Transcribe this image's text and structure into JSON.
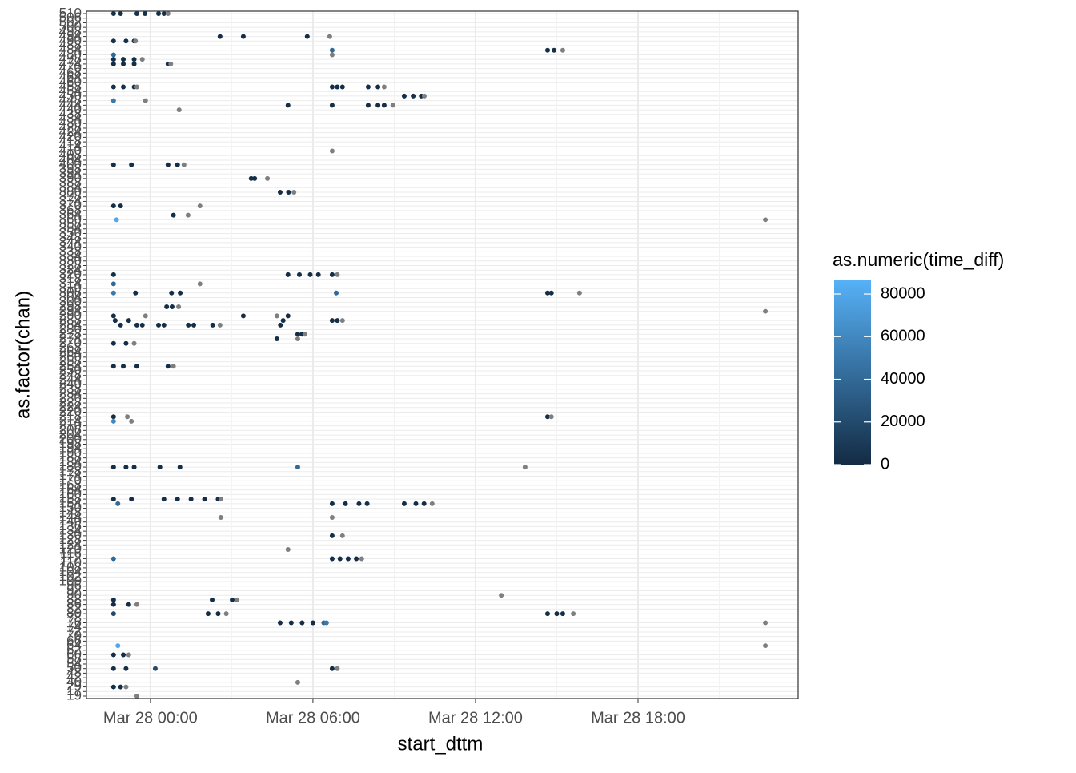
{
  "chart_data": {
    "type": "scatter",
    "x_label": "start_dttm",
    "y_label": "as.factor(chan)",
    "legend_title": "as.numeric(time_diff)",
    "xlim": [
      -2.36,
      23.91
    ],
    "xticks": [
      {
        "value": 0,
        "label": "Mar 28 00:00"
      },
      {
        "value": 6,
        "label": "Mar 28 06:00"
      },
      {
        "value": 12,
        "label": "Mar 28 12:00"
      },
      {
        "value": 18,
        "label": "Mar 28 18:00"
      }
    ],
    "categories": [
      "19",
      "17",
      "29",
      "40",
      "42",
      "48",
      "50",
      "54",
      "58",
      "60",
      "62",
      "64",
      "66",
      "70",
      "72",
      "74",
      "76",
      "78",
      "80",
      "82",
      "86",
      "88",
      "90",
      "92",
      "96",
      "100",
      "102",
      "104",
      "108",
      "110",
      "112",
      "116",
      "120",
      "124",
      "128",
      "130",
      "134",
      "136",
      "140",
      "144",
      "148",
      "150",
      "154",
      "158",
      "160",
      "164",
      "168",
      "170",
      "174",
      "178",
      "180",
      "184",
      "188",
      "190",
      "194",
      "198",
      "200",
      "204",
      "206",
      "210",
      "214",
      "218",
      "220",
      "224",
      "228",
      "230",
      "234",
      "238",
      "240",
      "244",
      "248",
      "250",
      "254",
      "258",
      "260",
      "264",
      "268",
      "270",
      "274",
      "278",
      "280",
      "284",
      "288",
      "290",
      "294",
      "298",
      "300",
      "304",
      "306",
      "310",
      "314",
      "318",
      "320",
      "324",
      "328",
      "330",
      "334",
      "338",
      "340",
      "344",
      "348",
      "350",
      "354",
      "358",
      "360",
      "364",
      "368",
      "370",
      "374",
      "378",
      "380",
      "384",
      "388",
      "390",
      "394",
      "398",
      "400",
      "404",
      "408",
      "410",
      "414",
      "418",
      "420",
      "424",
      "428",
      "430",
      "434",
      "438",
      "440",
      "444",
      "448",
      "450",
      "454",
      "458",
      "460",
      "464",
      "468",
      "470",
      "474",
      "478",
      "480",
      "484",
      "488",
      "490",
      "494",
      "498",
      "500",
      "502",
      "506",
      "510"
    ],
    "x": [
      -1.36,
      -1.1,
      -0.5,
      -0.2,
      0.3,
      0.5,
      0.65,
      2.57,
      3.43,
      5.79,
      6.62,
      -1.36,
      -0.9,
      -0.6,
      -0.55,
      6.71,
      14.66,
      14.9,
      15.22,
      -1.36,
      6.71,
      -1.36,
      -1.0,
      -0.6,
      -0.3,
      -1.36,
      -1.0,
      -0.6,
      0.65,
      0.75,
      -1.36,
      -1.0,
      -0.6,
      -0.5,
      6.71,
      6.9,
      7.09,
      8.04,
      8.4,
      8.63,
      9.37,
      9.7,
      10.0,
      10.11,
      -1.36,
      -0.18,
      5.08,
      6.71,
      8.04,
      8.4,
      8.63,
      8.95,
      1.06,
      6.71,
      -1.36,
      -0.7,
      0.65,
      1.0,
      1.24,
      3.72,
      3.85,
      4.32,
      4.79,
      5.1,
      5.3,
      -1.36,
      -1.1,
      1.83,
      0.85,
      1.39,
      -1.25,
      22.7,
      -1.36,
      5.08,
      5.5,
      5.9,
      6.2,
      6.71,
      6.9,
      -1.36,
      1.83,
      -1.36,
      -0.55,
      0.78,
      1.1,
      6.86,
      14.66,
      14.8,
      15.84,
      0.6,
      0.8,
      1.04,
      22.7,
      -1.36,
      -0.18,
      3.43,
      4.67,
      5.08,
      -1.3,
      -0.8,
      4.9,
      6.71,
      6.9,
      7.09,
      -1.1,
      -0.5,
      -0.3,
      0.3,
      0.5,
      1.4,
      1.6,
      2.3,
      2.57,
      4.8,
      5.44,
      5.6,
      5.7,
      4.67,
      5.44,
      -1.36,
      -0.9,
      -0.6,
      -1.36,
      -1.0,
      -0.5,
      0.65,
      0.85,
      -1.36,
      -0.85,
      14.66,
      14.8,
      -1.36,
      -0.7,
      -1.36,
      -0.9,
      -0.6,
      0.35,
      1.09,
      5.44,
      13.83,
      -1.36,
      -0.7,
      0.5,
      1.0,
      1.5,
      2.0,
      2.5,
      2.6,
      -1.2,
      6.71,
      7.2,
      7.7,
      8.0,
      9.37,
      9.8,
      10.1,
      10.4,
      2.6,
      6.71,
      6.71,
      7.09,
      5.08,
      -1.36,
      6.71,
      7.0,
      7.3,
      7.6,
      7.8,
      12.95,
      -1.36,
      2.28,
      3.02,
      3.2,
      -1.36,
      -0.8,
      -0.5,
      -1.36,
      2.13,
      2.5,
      2.8,
      14.66,
      15.0,
      15.22,
      15.61,
      4.79,
      5.2,
      5.6,
      6.0,
      6.4,
      6.5,
      22.7,
      -1.2,
      22.7,
      -1.36,
      -1.0,
      -0.8,
      -1.36,
      -0.9,
      0.18,
      6.71,
      6.9,
      5.44,
      -1.36,
      -1.1,
      -0.9,
      -0.5
    ],
    "y": [
      "510",
      "510",
      "510",
      "510",
      "510",
      "510",
      "510",
      "494",
      "494",
      "494",
      "494",
      "490",
      "490",
      "490",
      "490",
      "484",
      "484",
      "484",
      "484",
      "480",
      "480",
      "478",
      "478",
      "478",
      "478",
      "474",
      "474",
      "474",
      "474",
      "474",
      "458",
      "458",
      "458",
      "458",
      "458",
      "458",
      "458",
      "458",
      "458",
      "458",
      "450",
      "450",
      "450",
      "450",
      "448",
      "448",
      "444",
      "444",
      "444",
      "444",
      "444",
      "444",
      "440",
      "410",
      "400",
      "400",
      "400",
      "400",
      "400",
      "390",
      "390",
      "390",
      "380",
      "380",
      "380",
      "370",
      "370",
      "370",
      "364",
      "364",
      "360",
      "360",
      "320",
      "320",
      "320",
      "320",
      "320",
      "320",
      "320",
      "314",
      "314",
      "306",
      "306",
      "306",
      "306",
      "306",
      "306",
      "306",
      "306",
      "298",
      "298",
      "298",
      "294",
      "290",
      "290",
      "290",
      "290",
      "290",
      "288",
      "288",
      "288",
      "288",
      "288",
      "288",
      "284",
      "284",
      "284",
      "284",
      "284",
      "284",
      "284",
      "284",
      "284",
      "284",
      "278",
      "278",
      "278",
      "274",
      "274",
      "270",
      "270",
      "270",
      "254",
      "254",
      "254",
      "254",
      "254",
      "218",
      "218",
      "218",
      "218",
      "214",
      "214",
      "180",
      "180",
      "180",
      "180",
      "180",
      "180",
      "180",
      "158",
      "158",
      "158",
      "158",
      "158",
      "158",
      "158",
      "158",
      "154",
      "154",
      "154",
      "154",
      "154",
      "154",
      "154",
      "154",
      "154",
      "144",
      "144",
      "130",
      "130",
      "120",
      "112",
      "112",
      "112",
      "112",
      "112",
      "112",
      "90",
      "88",
      "88",
      "88",
      "88",
      "86",
      "86",
      "86",
      "80",
      "80",
      "80",
      "80",
      "80",
      "80",
      "80",
      "80",
      "76",
      "76",
      "76",
      "76",
      "76",
      "76",
      "76",
      "64",
      "64",
      "60",
      "60",
      "60",
      "50",
      "50",
      "50",
      "50",
      "50",
      "40",
      "29",
      "29",
      "29",
      "19"
    ],
    "color_values": [
      3000,
      3000,
      3000,
      3000,
      3000,
      3000,
      null,
      2000,
      2000,
      2000,
      null,
      3000,
      3000,
      3000,
      null,
      40000,
      2000,
      2000,
      null,
      40000,
      null,
      2000,
      2000,
      2000,
      null,
      2000,
      2000,
      2000,
      2000,
      null,
      3000,
      3000,
      3000,
      null,
      2000,
      2000,
      2000,
      2000,
      2000,
      null,
      2000,
      2000,
      2000,
      null,
      50000,
      null,
      2000,
      2000,
      2000,
      2000,
      2000,
      null,
      null,
      null,
      2000,
      2000,
      2000,
      2000,
      null,
      2000,
      2000,
      null,
      2000,
      2000,
      null,
      2000,
      2000,
      null,
      2000,
      null,
      80000,
      null,
      2000,
      2000,
      2000,
      2000,
      2000,
      2000,
      null,
      40000,
      null,
      50000,
      2000,
      2000,
      2000,
      40000,
      2000,
      2000,
      null,
      2000,
      2000,
      null,
      null,
      2000,
      null,
      2000,
      null,
      2000,
      2000,
      2000,
      2000,
      2000,
      2000,
      null,
      2000,
      2000,
      2000,
      2000,
      2000,
      2000,
      2000,
      2000,
      null,
      2000,
      2000,
      2000,
      null,
      2000,
      null,
      2000,
      2000,
      null,
      2000,
      2000,
      2000,
      2000,
      null,
      2000,
      null,
      2000,
      null,
      60000,
      null,
      2000,
      2000,
      2000,
      2000,
      2000,
      40000,
      null,
      2000,
      2000,
      2000,
      2000,
      2000,
      2000,
      2000,
      null,
      40000,
      2000,
      2000,
      2000,
      2000,
      2000,
      2000,
      2000,
      null,
      null,
      null,
      2000,
      null,
      null,
      40000,
      2000,
      2000,
      2000,
      2000,
      null,
      null,
      2000,
      2000,
      2000,
      null,
      2000,
      2000,
      null,
      20000,
      2000,
      2000,
      null,
      2000,
      2000,
      2000,
      null,
      2000,
      2000,
      2000,
      2000,
      40000,
      50000,
      null,
      80000,
      null,
      2000,
      2000,
      null,
      2000,
      2000,
      20000,
      2000,
      null,
      null,
      2000,
      2000,
      null,
      null
    ],
    "colorlim": [
      0,
      86400
    ],
    "colorticks": [
      0,
      20000,
      40000,
      60000,
      80000
    ],
    "low_color": "#132B43",
    "high_color": "#56B1F7",
    "na_color": "#7f7f7f",
    "grid": true
  }
}
